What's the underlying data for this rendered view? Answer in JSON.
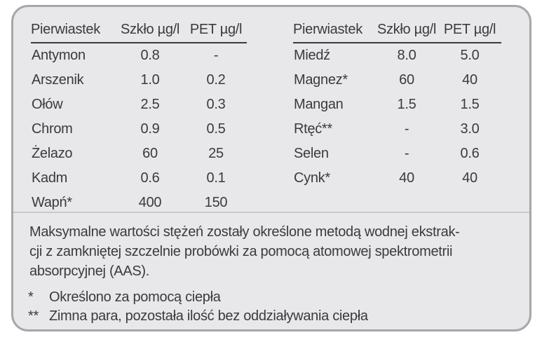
{
  "panel": {
    "background_color": "#e8e8ea",
    "border_color": "#a7a7ab",
    "text_color": "#3a3a3f",
    "divider_color": "#c9c9cd"
  },
  "tables": [
    {
      "headers": [
        "Pierwiastek",
        "Szkło µg/l",
        "PET µg/l"
      ],
      "rows": [
        [
          "Antymon",
          "0.8",
          "-"
        ],
        [
          "Arszenik",
          "1.0",
          "0.2"
        ],
        [
          "Ołów",
          "2.5",
          "0.3"
        ],
        [
          "Chrom",
          "0.9",
          "0.5"
        ],
        [
          "Żelazo",
          "60",
          "25"
        ],
        [
          "Kadm",
          "0.6",
          "0.1"
        ],
        [
          "Wapń*",
          "400",
          "150"
        ]
      ]
    },
    {
      "headers": [
        "Pierwiastek",
        "Szkło µg/l",
        "PET µg/l"
      ],
      "rows": [
        [
          "Miedź",
          "8.0",
          "5.0"
        ],
        [
          "Magnez*",
          "60",
          "40"
        ],
        [
          "Mangan",
          "1.5",
          "1.5"
        ],
        [
          "Rtęć**",
          "-",
          "3.0"
        ],
        [
          "Selen",
          "-",
          "0.6"
        ],
        [
          "Cynk*",
          "40",
          "40"
        ]
      ]
    }
  ],
  "note": {
    "lines": [
      "Maksymalne wartości stężeń zostały określone metodą wodnej ekstrak-",
      "cji z zamkniętej szczelnie probówki za pomocą atomowej spektrometrii",
      "absorpcyjnej (AAS)."
    ]
  },
  "footnotes": [
    {
      "marker": "*",
      "text": "Określono za pomocą ciepła"
    },
    {
      "marker": "**",
      "text": "Zimna para, pozostała ilość bez oddziaływania ciepła"
    }
  ]
}
